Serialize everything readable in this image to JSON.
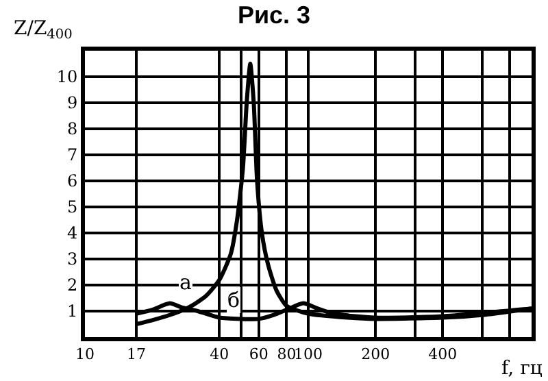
{
  "chart_data": {
    "type": "line",
    "title": "Рис. 3",
    "xlabel": "f, гц",
    "ylabel": "Z/Z$_{400}$",
    "log": "x",
    "grid": true,
    "legend": false,
    "marker": "none",
    "line_style": "solid",
    "xlim": [
      10,
      1000
    ],
    "xticks": [
      10,
      17,
      40,
      {
        "value": 50,
        "label": null
      },
      60,
      80,
      100,
      200,
      {
        "value": 300,
        "label": null
      },
      400,
      {
        "value": 600,
        "label": null
      },
      {
        "value": 800,
        "label": null
      }
    ],
    "ylim": [
      0,
      11
    ],
    "yticks": [
      {
        "value": 0,
        "label": null
      },
      1,
      2,
      3,
      4,
      5,
      6,
      7,
      8,
      9,
      10
    ],
    "series": [
      {
        "name": "а",
        "color": "#000000",
        "x": [
          17,
          20,
          25,
          30,
          35,
          40,
          45,
          48,
          51,
          53,
          55,
          57,
          59,
          62,
          66,
          72,
          80,
          100,
          150,
          200,
          400,
          600,
          1000
        ],
        "values": [
          0.5,
          0.65,
          0.9,
          1.2,
          1.6,
          2.2,
          3.2,
          4.5,
          6.5,
          9,
          10.5,
          9,
          6,
          4,
          2.8,
          1.8,
          1.2,
          0.9,
          0.75,
          0.7,
          0.75,
          0.85,
          1.1
        ]
      },
      {
        "name": "б",
        "color": "#000000",
        "x": [
          17,
          20,
          24,
          27,
          32,
          40,
          50,
          60,
          70,
          80,
          95,
          110,
          130,
          200,
          400,
          1000
        ],
        "values": [
          0.9,
          1.05,
          1.3,
          1.15,
          1.0,
          0.75,
          0.7,
          0.7,
          0.85,
          1.05,
          1.3,
          1.1,
          0.9,
          0.75,
          0.8,
          1.1
        ]
      }
    ]
  }
}
